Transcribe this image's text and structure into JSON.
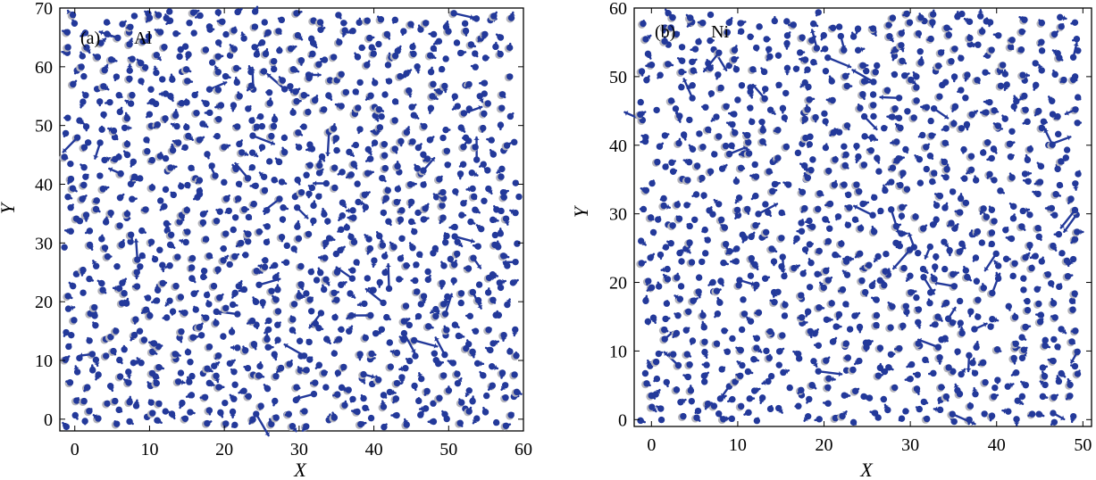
{
  "chart_data": [
    {
      "type": "scatter",
      "panel_label": "(a)",
      "element": "Al",
      "xlabel": "X",
      "ylabel": "Y",
      "xlim": [
        -2,
        60
      ],
      "ylim": [
        -2,
        70
      ],
      "xticks": [
        "0",
        "10",
        "20",
        "30",
        "40",
        "50",
        "60"
      ],
      "yticks": [
        "0",
        "10",
        "20",
        "30",
        "40",
        "50",
        "60",
        "70"
      ],
      "grid": false,
      "lattice_spacing": 2.0,
      "colors": {
        "displacement": "#23399a",
        "initial_site": "#b4b4bc",
        "frame": "#000000"
      }
    },
    {
      "type": "scatter",
      "panel_label": "(b)",
      "element": "Ni",
      "xlabel": "X",
      "ylabel": "Y",
      "xlim": [
        -2,
        51
      ],
      "ylim": [
        -1,
        60
      ],
      "xticks": [
        "0",
        "10",
        "20",
        "30",
        "40",
        "50"
      ],
      "yticks": [
        "0",
        "10",
        "20",
        "30",
        "40",
        "50",
        "60"
      ],
      "grid": false,
      "lattice_spacing": 1.76,
      "colors": {
        "displacement": "#23399a",
        "initial_site": "#b4b4bc",
        "frame": "#000000"
      }
    }
  ]
}
